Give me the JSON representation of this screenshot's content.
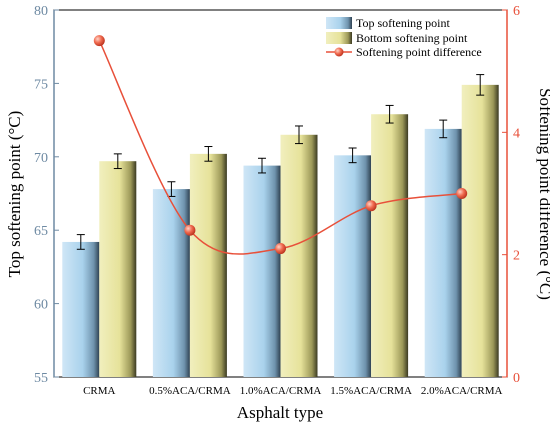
{
  "chart_data": {
    "type": "bar",
    "categories": [
      "CRMA",
      "0.5%ACA/CRMA",
      "1.0%ACA/CRMA",
      "1.5%ACA/CRMA",
      "2.0%ACA/CRMA"
    ],
    "series": [
      {
        "name": "Top softening point",
        "type": "bar",
        "axis": "left",
        "values": [
          64.2,
          67.8,
          69.4,
          70.1,
          71.9
        ],
        "errors": [
          0.5,
          0.5,
          0.5,
          0.5,
          0.6
        ]
      },
      {
        "name": "Bottom softening point",
        "type": "bar",
        "axis": "left",
        "values": [
          69.7,
          70.2,
          71.5,
          72.9,
          74.9
        ],
        "errors": [
          0.5,
          0.5,
          0.6,
          0.6,
          0.7
        ]
      },
      {
        "name": "Softening point difference",
        "type": "line",
        "axis": "right",
        "values": [
          5.5,
          2.4,
          2.1,
          2.8,
          3.0
        ]
      }
    ],
    "xlabel": "Asphalt type",
    "ylabel": "Top softening point (°C)",
    "y2label": "Softening point difference (°C)",
    "ylim": [
      55,
      80
    ],
    "y2lim": [
      0,
      6
    ],
    "yticks": [
      "55",
      "60",
      "65",
      "70",
      "75",
      "80"
    ],
    "y2ticks": [
      "0",
      "2",
      "4",
      "6"
    ],
    "legend_position": "top-center",
    "grid": false,
    "colors": {
      "top_bar": "#a9d2ec",
      "bottom_bar": "#e6e29a",
      "line": "#e8503a",
      "left_axis": "#6e8aa3",
      "right_axis": "#e8503a"
    }
  }
}
